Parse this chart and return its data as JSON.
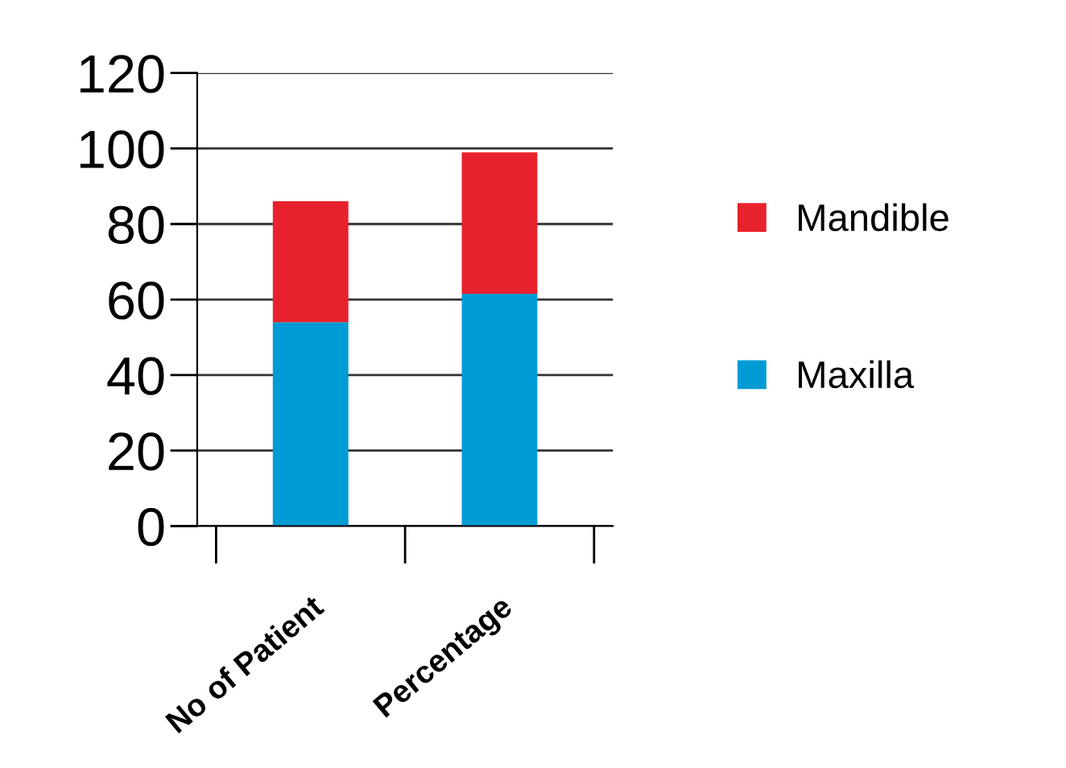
{
  "chart_data": {
    "type": "bar",
    "stacked": true,
    "categories": [
      "No of Patient",
      "Percentage"
    ],
    "series": [
      {
        "name": "Maxilla",
        "color": "#009bd4",
        "values": [
          54,
          61.5
        ]
      },
      {
        "name": "Mandible",
        "color": "#e8222c",
        "values": [
          32,
          37.5
        ]
      }
    ],
    "ylim": [
      0,
      120
    ],
    "yticks": [
      0,
      20,
      40,
      60,
      80,
      100,
      120
    ],
    "grid": "y",
    "legend": "right"
  }
}
